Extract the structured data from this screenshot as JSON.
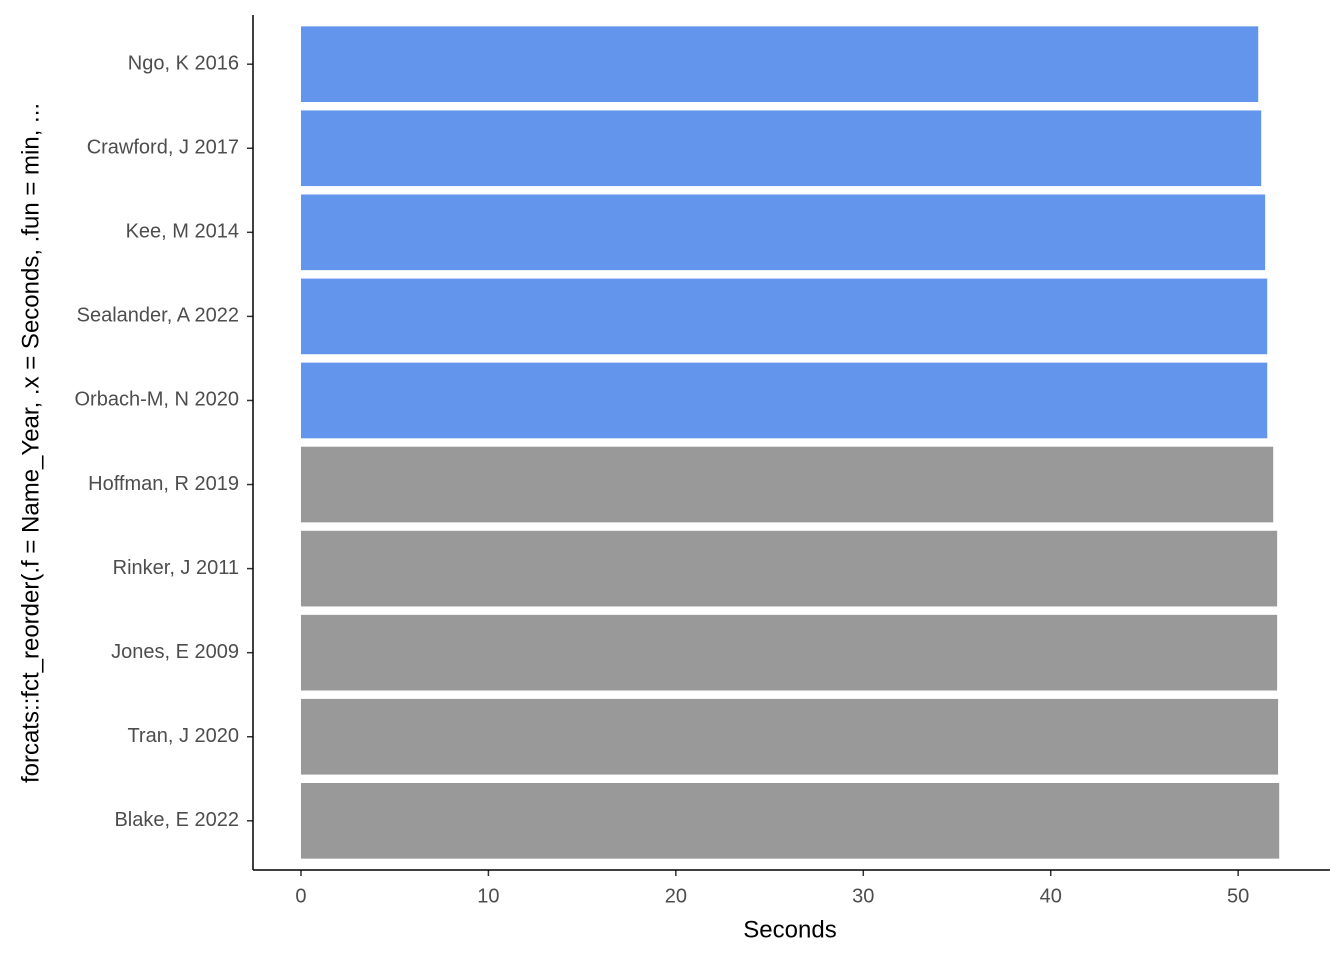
{
  "chart_data": {
    "type": "hbar",
    "xlabel": "Seconds",
    "ylabel": "forcats::fct_reorder(.f = Name_Year, .x = Seconds, .fun = min, ...",
    "categories": [
      "Ngo, K 2016",
      "Crawford, J 2017",
      "Kee, M 2014",
      "Sealander, A 2022",
      "Orbach-M, N 2020",
      "Hoffman, R 2019",
      "Rinker, J 2011",
      "Jones, E 2009",
      "Tran, J 2020",
      "Blake, E 2022"
    ],
    "values": [
      51.07,
      51.23,
      51.44,
      51.55,
      51.55,
      51.87,
      52.08,
      52.08,
      52.13,
      52.19
    ],
    "colors": [
      "#6495ed",
      "#6495ed",
      "#6495ed",
      "#6495ed",
      "#6495ed",
      "#999999",
      "#999999",
      "#999999",
      "#999999",
      "#999999"
    ],
    "xlim": [
      -2.56,
      54.9
    ],
    "xticks": [
      0,
      10,
      20,
      30,
      40,
      50
    ]
  }
}
